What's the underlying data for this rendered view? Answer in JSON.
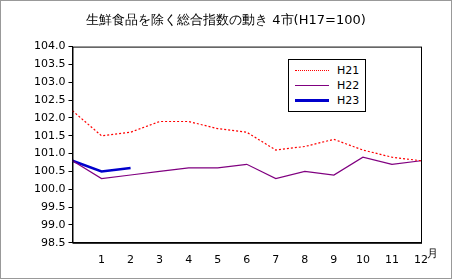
{
  "chart_data": {
    "type": "line",
    "title": "生鮮食品を除く総合指数の動き 4市(H17=100)",
    "xlabel": "月",
    "categories": [
      null,
      "1",
      "2",
      "3",
      "4",
      "5",
      "6",
      "7",
      "8",
      "9",
      "10",
      "11",
      "12"
    ],
    "series": [
      {
        "name": "H21",
        "color": "#ff0000",
        "line_style": "dotted",
        "marker": "none",
        "values": [
          102.2,
          101.5,
          101.6,
          101.9,
          101.9,
          101.7,
          101.6,
          101.1,
          101.2,
          101.4,
          101.1,
          100.9,
          100.8
        ]
      },
      {
        "name": "H22",
        "color": "#800080",
        "line_style": "solid",
        "marker": "none",
        "values": [
          100.8,
          100.3,
          100.4,
          100.5,
          100.6,
          100.6,
          100.7,
          100.3,
          100.5,
          100.4,
          100.9,
          100.7,
          100.8
        ]
      },
      {
        "name": "H23",
        "color": "#0000cc",
        "line_style": "solid",
        "marker": "none",
        "values": [
          100.8,
          100.5,
          100.6,
          null,
          null,
          null,
          null,
          null,
          null,
          null,
          null,
          null,
          null
        ]
      }
    ],
    "ylim": [
      98.5,
      104.0
    ],
    "yticks": [
      98.5,
      {
        "value": 99,
        "label": "99.0"
      },
      99.5,
      {
        "value": 100,
        "label": "100.0"
      },
      100.5,
      {
        "value": 101,
        "label": "101.0"
      },
      101.5,
      {
        "value": 102,
        "label": "102.0"
      },
      102.5,
      {
        "value": 103,
        "label": "103.0"
      },
      103.5,
      {
        "value": 104,
        "label": "104.0"
      }
    ],
    "grid": false,
    "legend": "upper right"
  }
}
